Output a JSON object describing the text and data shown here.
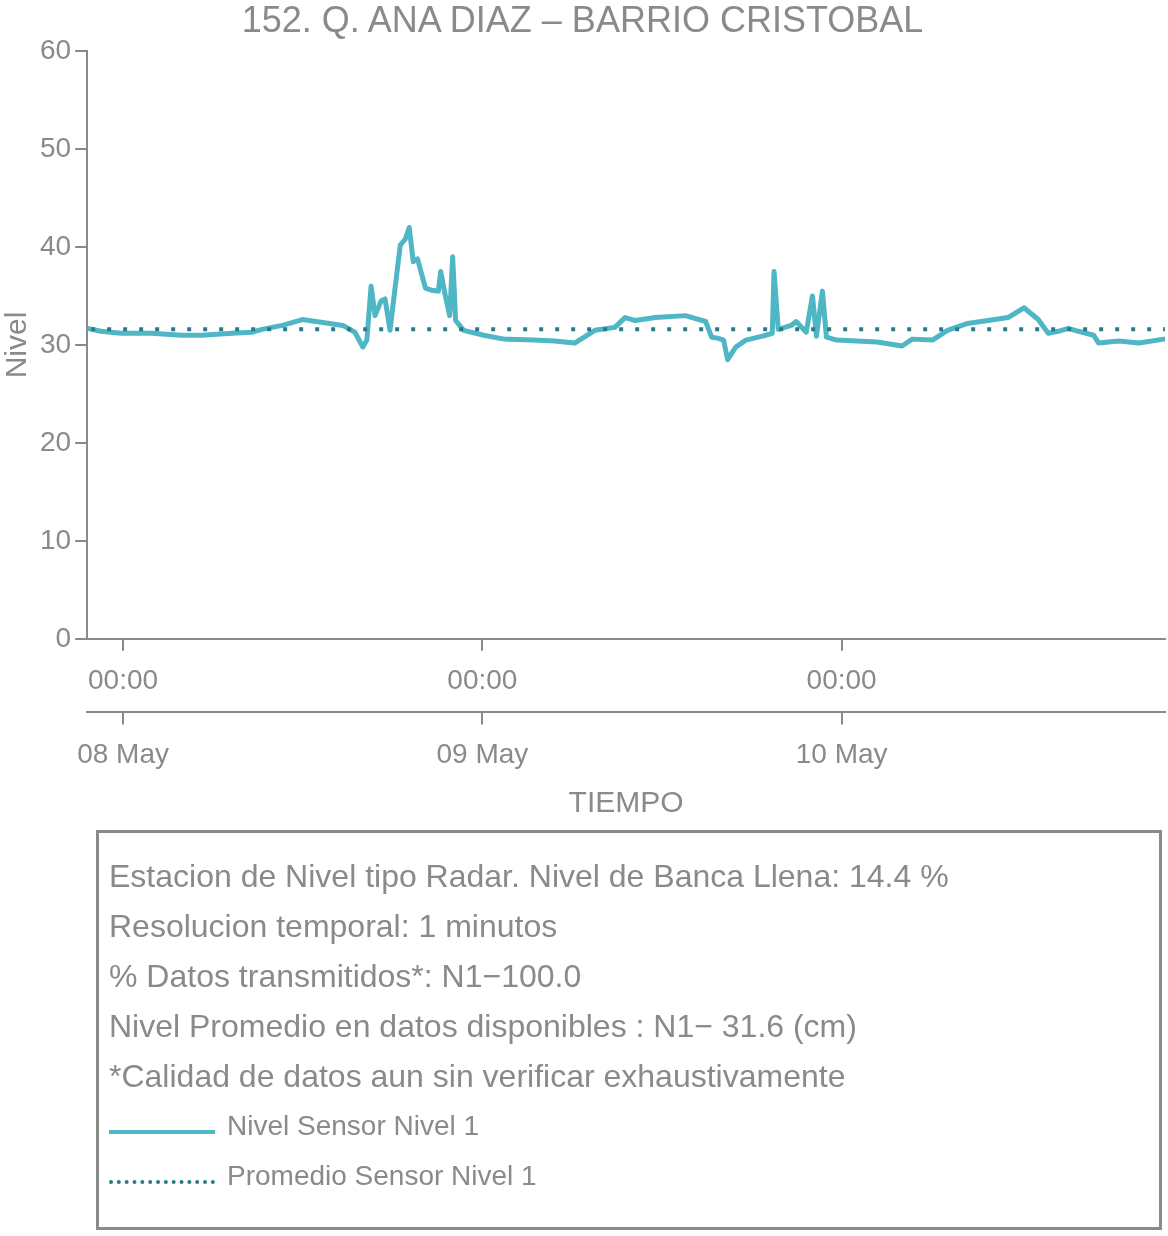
{
  "chart_data": {
    "type": "line",
    "title": "152. Q. ANA DIAZ – BARRIO CRISTOBAL",
    "xlabel": "TIEMPO",
    "ylabel": "Nivel",
    "xlim": [
      "--05-07T21:36",
      "--05-10T21:36"
    ],
    "xticks": [
      {
        "value": "--05-08T00:00",
        "label": "00:00"
      },
      {
        "value": "--05-09T00:00",
        "label": "00:00"
      },
      {
        "value": "--05-10T00:00",
        "label": "00:00"
      }
    ],
    "x2lim": [
      "--05-07T21:36",
      "--05-10T21:36"
    ],
    "x2ticks": [
      {
        "value": "--05-08T00:00",
        "label": "08 May"
      },
      {
        "value": "--05-09T00:00",
        "label": "09 May"
      },
      {
        "value": "--05-10T00:00",
        "label": "10 May"
      }
    ],
    "ylim": [
      0,
      60
    ],
    "yticks": [
      0,
      10,
      20,
      30,
      40,
      50,
      60
    ],
    "legend": "bottom",
    "line_style": "solid",
    "series": [
      {
        "name": "Nivel Sensor Nivel 1",
        "color": "#4fb6c6",
        "x": [
          "--05-07T21:38",
          "--05-07T22:31",
          "--05-07T23:52",
          "--05-08T01:53",
          "--05-08T03:55",
          "--05-08T05:15",
          "--05-08T07:16",
          "--05-08T08:37",
          "--05-08T09:17",
          "--05-08T10:38",
          "--05-08T11:59",
          "--05-08T13:20",
          "--05-08T14:41",
          "--05-08T15:29",
          "--05-08T16:01",
          "--05-08T16:17",
          "--05-08T16:34",
          "--05-08T16:50",
          "--05-08T17:14",
          "--05-08T17:30",
          "--05-08T17:50",
          "--05-08T18:11",
          "--05-08T18:31",
          "--05-08T18:51",
          "--05-08T19:07",
          "--05-08T19:23",
          "--05-08T19:40",
          "--05-08T20:12",
          "--05-08T20:36",
          "--05-08T21:04",
          "--05-08T21:13",
          "--05-08T21:32",
          "--05-08T21:49",
          "--05-08T22:01",
          "--05-08T22:13",
          "--05-08T22:45",
          "--05-09T00:06",
          "--05-09T01:27",
          "--05-09T03:28",
          "--05-09T04:49",
          "--05-09T06:10",
          "--05-09T07:31",
          "--05-09T08:51",
          "--05-09T09:32",
          "--05-09T10:12",
          "--05-09T11:33",
          "--05-09T13:34",
          "--05-09T14:55",
          "--05-09T15:19",
          "--05-09T15:43",
          "--05-09T16:07",
          "--05-09T16:23",
          "--05-09T16:56",
          "--05-09T17:36",
          "--05-09T18:57",
          "--05-09T19:22",
          "--05-09T19:29",
          "--05-09T19:46",
          "--05-09T20:38",
          "--05-09T20:58",
          "--05-09T21:38",
          "--05-09T22:03",
          "--05-09T22:19",
          "--05-09T22:43",
          "--05-09T22:59",
          "--05-09T23:40",
          "--05-10T01:01",
          "--05-10T02:22",
          "--05-10T04:02",
          "--05-10T04:43",
          "--05-10T06:04",
          "--05-10T07:04",
          "--05-10T08:25",
          "--05-10T09:46",
          "--05-10T11:07",
          "--05-10T12:11",
          "--05-10T13:08",
          "--05-10T13:48",
          "--05-10T14:28",
          "--05-10T15:09",
          "--05-10T15:49",
          "--05-10T16:50",
          "--05-10T17:10",
          "--05-10T18:31",
          "--05-10T19:52",
          "--05-10T21:32"
        ],
        "values": [
          31.7,
          31.4,
          31.2,
          31.2,
          31.0,
          31.0,
          31.2,
          31.3,
          31.6,
          32.0,
          32.6,
          32.3,
          32.0,
          31.3,
          29.8,
          30.5,
          36.0,
          33.0,
          34.5,
          34.7,
          31.5,
          36.0,
          40.2,
          40.8,
          42.0,
          38.5,
          38.8,
          35.8,
          35.6,
          35.5,
          37.5,
          35.0,
          33.0,
          39.0,
          32.5,
          31.5,
          31.0,
          30.6,
          30.5,
          30.4,
          30.2,
          31.5,
          31.8,
          32.8,
          32.5,
          32.8,
          33.0,
          32.4,
          30.8,
          30.7,
          30.5,
          28.5,
          29.8,
          30.5,
          31.0,
          31.2,
          37.5,
          31.6,
          32.0,
          32.4,
          31.3,
          35.0,
          30.9,
          35.5,
          30.8,
          30.5,
          30.4,
          30.3,
          29.9,
          30.6,
          30.5,
          31.5,
          32.2,
          32.5,
          32.8,
          33.8,
          32.6,
          31.2,
          31.4,
          31.7,
          31.4,
          31.0,
          30.2,
          30.4,
          30.2,
          30.6
        ]
      }
    ],
    "ref_lines": [
      {
        "axis": "y",
        "value": 31.6,
        "label": "Promedio Sensor Nivel 1",
        "color": "#2b7a8c",
        "line_style": "dotted"
      }
    ],
    "annotations": [
      "Estacion de Nivel tipo Radar. Nivel de Banca Llena: 14.4 %",
      "Resolucion temporal: 1 minutos",
      "% Datos transmitidos*: N1−100.0",
      "Nivel Promedio en datos disponibles : N1− 31.6 (cm)",
      "*Calidad de datos aun sin verificar exhaustivamente"
    ]
  }
}
